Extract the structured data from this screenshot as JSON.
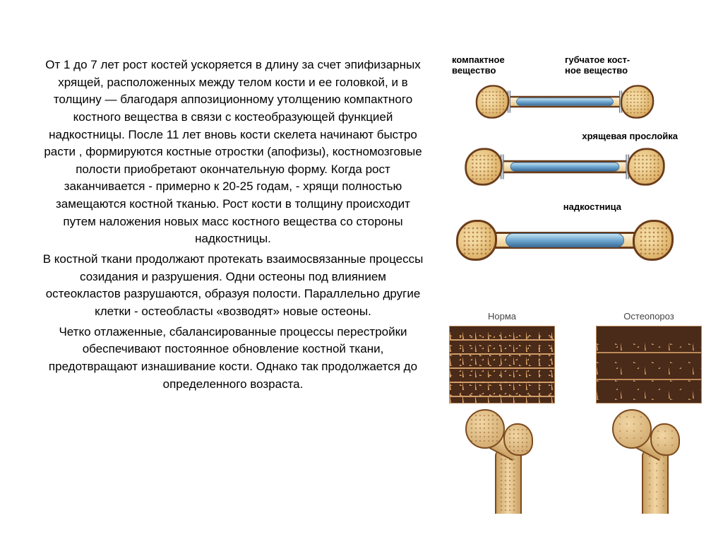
{
  "paragraphs": {
    "p1": "От 1 до 7 лет рост костей ускоряется в длину за счет эпифизарных хрящей, расположенных между телом кости и ее головкой, и в толщину — благодаря аппозиционному утолщению компактного костного вещества в связи с костеобразующей функцией надкостницы. После 11 лет вновь кости скелета начинают быстро расти , формируются костные отростки (апофизы), костномозговые полости приобретают окончательную форму. Когда рост заканчивается - примерно к 20-25 годам, - хрящи полностью замещаются костной тканью. Рост кости в толщину происходит путем наложения новых масс костного вещества со стороны надкостницы.",
    "p2": "В костной ткани продолжают протекать взаимосвязанные процессы созидания и разрушения. Одни остеоны под влиянием остеокластов разрушаются, образуя полости. Параллельно другие клетки - остеобласты «возводят» новые остеоны.",
    "p3": "Четко отлаженные, сбалансированные процессы перестройки обеспечивают постоянное обновление костной ткани, предотвращают изнашивание кости. Однако так продолжается до определенного возраста."
  },
  "diagram_labels": {
    "compact": "компактное\nвещество",
    "spongy": "губчатое кост-\nное вещество",
    "cartilage": "хрящевая прослойка",
    "periosteum": "надкостница"
  },
  "compare": {
    "normal": "Норма",
    "osteo": "Остеопороз"
  },
  "colors": {
    "text": "#000000",
    "bone_outline": "#6a3c1a",
    "bone_fill_light": "#f1d6a4",
    "bone_fill_dark": "#caa063",
    "marrow_light": "#c6e2f2",
    "marrow_dark": "#3d6e9a",
    "trabecular_bg": "#4a2a18",
    "trabecular_strut": "#e7b075"
  }
}
